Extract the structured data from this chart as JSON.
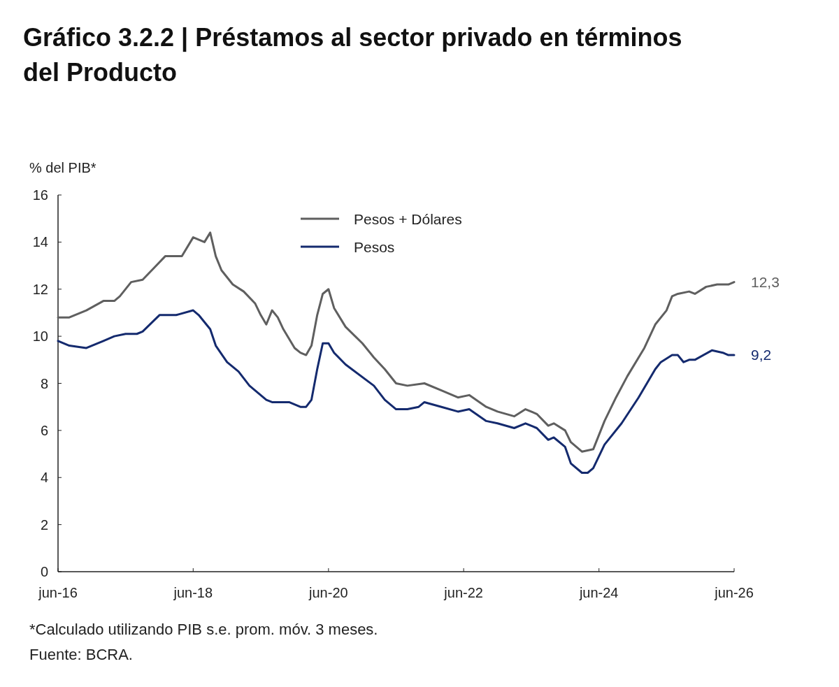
{
  "chart_data": {
    "type": "line",
    "title": "Gráfico 3.2.2 | Préstamos al sector privado en términos del Producto",
    "ylabel": "% del PIB*",
    "ylim": [
      0,
      16
    ],
    "yticks": [
      0,
      2,
      4,
      6,
      8,
      10,
      12,
      14,
      16
    ],
    "xlim": [
      "2016-06",
      "2026-06"
    ],
    "xticks": [
      {
        "value": "2016-06",
        "label": "jun-16"
      },
      {
        "value": "2018-06",
        "label": "jun-18"
      },
      {
        "value": "2020-06",
        "label": "jun-20"
      },
      {
        "value": "2022-06",
        "label": "jun-22"
      },
      {
        "value": "2024-06",
        "label": "jun-24"
      },
      {
        "value": "2026-06",
        "label": "jun-26"
      }
    ],
    "grid": false,
    "legend": "top",
    "line_style": "solid",
    "series": [
      {
        "name": "Pesos + Dólares",
        "color": "#5f5f5f",
        "x": [
          "2016-06",
          "2016-08",
          "2016-11",
          "2017-02",
          "2017-04",
          "2017-05",
          "2017-07",
          "2017-09",
          "2017-11",
          "2018-01",
          "2018-04",
          "2018-06",
          "2018-08",
          "2018-09",
          "2018-10",
          "2018-11",
          "2019-01",
          "2019-03",
          "2019-05",
          "2019-06",
          "2019-07",
          "2019-08",
          "2019-09",
          "2019-10",
          "2019-12",
          "2020-01",
          "2020-02",
          "2020-03",
          "2020-04",
          "2020-05",
          "2020-06",
          "2020-07",
          "2020-09",
          "2020-12",
          "2021-02",
          "2021-04",
          "2021-06",
          "2021-08",
          "2021-11",
          "2022-02",
          "2022-05",
          "2022-07",
          "2022-10",
          "2022-12",
          "2023-03",
          "2023-05",
          "2023-07",
          "2023-09",
          "2023-10",
          "2023-12",
          "2024-01",
          "2024-03",
          "2024-05",
          "2024-07",
          "2024-09",
          "2024-11",
          "2025-02",
          "2025-04",
          "2025-06",
          "2025-07",
          "2025-08",
          "2025-10",
          "2025-11",
          "2026-01",
          "2026-03",
          "2026-05",
          "2026-06"
        ],
        "values": [
          10.8,
          10.8,
          11.1,
          11.5,
          11.5,
          11.7,
          12.3,
          12.4,
          12.9,
          13.4,
          13.4,
          14.2,
          14.0,
          14.4,
          13.4,
          12.8,
          12.2,
          11.9,
          11.4,
          10.9,
          10.5,
          11.1,
          10.8,
          10.3,
          9.5,
          9.3,
          9.2,
          9.6,
          10.9,
          11.8,
          12.0,
          11.2,
          10.4,
          9.7,
          9.1,
          8.6,
          8.0,
          7.9,
          8.0,
          7.7,
          7.4,
          7.5,
          7.0,
          6.8,
          6.6,
          6.9,
          6.7,
          6.2,
          6.3,
          6.0,
          5.5,
          5.1,
          5.2,
          6.4,
          7.4,
          8.3,
          9.5,
          10.5,
          11.1,
          11.7,
          11.8,
          11.9,
          11.8,
          12.1,
          12.2,
          12.2,
          12.3
        ]
      },
      {
        "name": "Pesos",
        "color": "#142a6e",
        "x": [
          "2016-06",
          "2016-08",
          "2016-11",
          "2017-02",
          "2017-04",
          "2017-06",
          "2017-08",
          "2017-09",
          "2017-12",
          "2018-01",
          "2018-03",
          "2018-06",
          "2018-07",
          "2018-09",
          "2018-10",
          "2018-12",
          "2019-02",
          "2019-04",
          "2019-07",
          "2019-08",
          "2019-11",
          "2020-01",
          "2020-02",
          "2020-03",
          "2020-04",
          "2020-05",
          "2020-06",
          "2020-07",
          "2020-09",
          "2021-02",
          "2021-04",
          "2021-06",
          "2021-08",
          "2021-10",
          "2021-11",
          "2022-02",
          "2022-05",
          "2022-07",
          "2022-10",
          "2022-12",
          "2023-03",
          "2023-05",
          "2023-07",
          "2023-09",
          "2023-10",
          "2023-12",
          "2024-01",
          "2024-03",
          "2024-04",
          "2024-05",
          "2024-07",
          "2024-10",
          "2025-01",
          "2025-04",
          "2025-05",
          "2025-07",
          "2025-08",
          "2025-09",
          "2025-10",
          "2025-11",
          "2026-02",
          "2026-04",
          "2026-05",
          "2026-06"
        ],
        "values": [
          9.8,
          9.6,
          9.5,
          9.8,
          10.0,
          10.1,
          10.1,
          10.2,
          10.9,
          10.9,
          10.9,
          11.1,
          10.9,
          10.3,
          9.6,
          8.9,
          8.5,
          7.9,
          7.3,
          7.2,
          7.2,
          7.0,
          7.0,
          7.3,
          8.6,
          9.7,
          9.7,
          9.3,
          8.8,
          7.9,
          7.3,
          6.9,
          6.9,
          7.0,
          7.2,
          7.0,
          6.8,
          6.9,
          6.4,
          6.3,
          6.1,
          6.3,
          6.1,
          5.6,
          5.7,
          5.3,
          4.6,
          4.2,
          4.2,
          4.4,
          5.4,
          6.3,
          7.4,
          8.6,
          8.9,
          9.2,
          9.2,
          8.9,
          9.0,
          9.0,
          9.4,
          9.3,
          9.2,
          9.2
        ]
      }
    ],
    "annotations": [
      {
        "text": "12,3",
        "x": "2026-06",
        "y": 12.3
      },
      {
        "text": "9,2",
        "x": "2026-06",
        "y": 9.2
      },
      "*Calculado utilizando PIB s.e. prom. móv. 3 meses.",
      "Fuente: BCRA."
    ]
  }
}
